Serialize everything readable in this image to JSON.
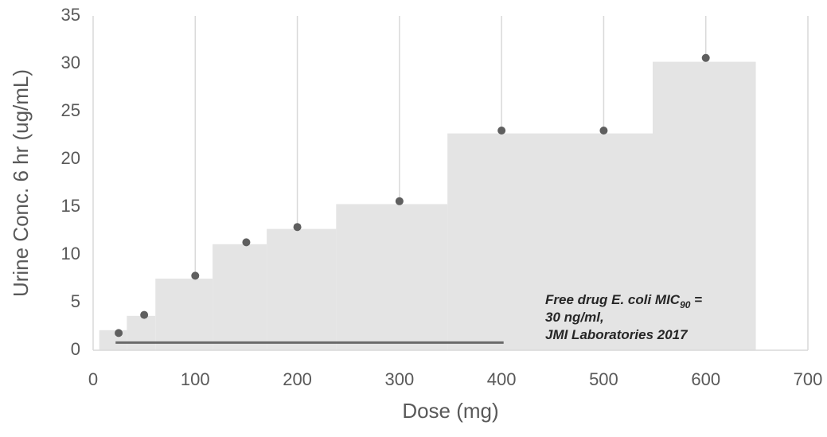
{
  "chart_data": {
    "type": "combo",
    "xlabel": "Dose (mg)",
    "ylabel": "Urine Conc. 6 hr  (ug/mL)",
    "xlim": [
      0,
      700
    ],
    "xticks": [
      0,
      100,
      200,
      300,
      400,
      500,
      600,
      700
    ],
    "ylim": [
      0,
      35
    ],
    "yticks": [
      0,
      5,
      10,
      15,
      20,
      25,
      30,
      35
    ],
    "grid": "x",
    "series": [
      {
        "type": "histogram",
        "color": "#e4e4e4",
        "bins": [
          6,
          33,
          61,
          117,
          170,
          238,
          347,
          548,
          649
        ],
        "counts": [
          2.1,
          3.6,
          7.5,
          11.1,
          12.7,
          15.3,
          22.7,
          30.2
        ]
      },
      {
        "type": "scatter",
        "color": "#5f5f5f",
        "x": [
          25,
          50,
          100,
          150,
          200,
          300,
          400,
          500,
          600
        ],
        "values": [
          1.8,
          3.7,
          7.8,
          11.3,
          12.9,
          15.6,
          23.0,
          23.0,
          30.6
        ]
      },
      {
        "type": "line",
        "color": "#6a6a6a",
        "x": [
          22,
          402
        ],
        "values": [
          0.8,
          0.8
        ]
      }
    ],
    "annotation": {
      "line1": "Free drug E. coli MIC",
      "subscript": "90",
      "line1_end": " =",
      "line2": "30 ng/ml,",
      "line3": "JMI Laboratories 2017"
    }
  }
}
